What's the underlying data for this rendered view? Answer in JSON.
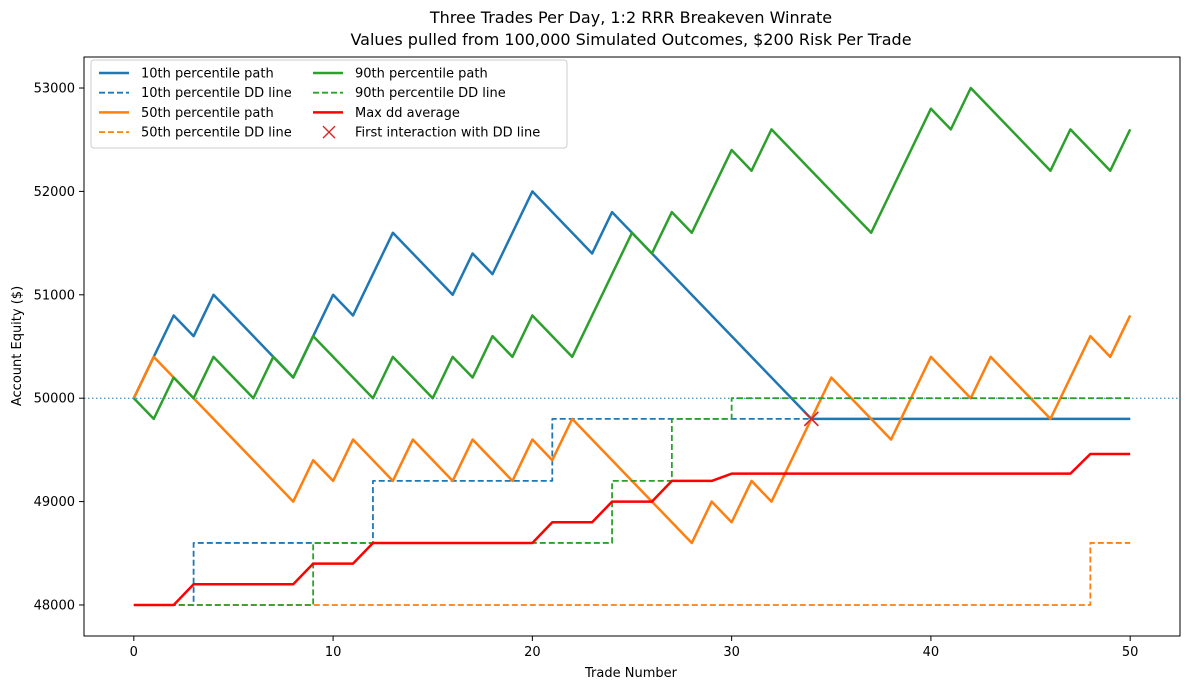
{
  "chart_data": {
    "type": "line",
    "title": "Three Trades Per Day, 1:2 RRR Breakeven Winrate",
    "subtitle": "Values pulled from 100,000 Simulated Outcomes, $200 Risk Per Trade",
    "xlabel": "Trade Number",
    "ylabel": "Account Equity ($)",
    "xlim": [
      -2.5,
      52.5
    ],
    "ylim": [
      47700,
      53300
    ],
    "xticks": [
      0,
      10,
      20,
      30,
      40,
      50
    ],
    "yticks": [
      48000,
      49000,
      50000,
      51000,
      52000,
      53000
    ],
    "grid": false,
    "legend_position": "upper left",
    "legend_columns": 2,
    "reference_line": {
      "y": 50000,
      "color": "#1f77b4",
      "style": "dotted"
    },
    "series": [
      {
        "name": "10th percentile path",
        "color": "#1f77b4",
        "style": "solid",
        "width": 2.5,
        "step": false,
        "x": [
          0,
          1,
          2,
          3,
          4,
          7,
          8,
          9,
          10,
          11,
          13,
          16,
          17,
          18,
          20,
          23,
          24,
          34,
          50
        ],
        "y": [
          50000,
          50400,
          50800,
          50600,
          51000,
          50400,
          50200,
          50600,
          51000,
          50800,
          51600,
          51000,
          51400,
          51200,
          52000,
          51400,
          51800,
          49800,
          49800
        ]
      },
      {
        "name": "10th percentile DD line",
        "color": "#1f77b4",
        "style": "dashed",
        "width": 1.8,
        "step": true,
        "x": [
          0,
          3,
          12,
          21,
          30,
          50
        ],
        "y": [
          48000,
          48600,
          49200,
          49800,
          49800,
          49800
        ]
      },
      {
        "name": "50th percentile path",
        "color": "#ff7f0e",
        "style": "solid",
        "width": 2.5,
        "step": false,
        "x": [
          0,
          1,
          3,
          8,
          9,
          10,
          11,
          13,
          14,
          16,
          17,
          19,
          20,
          21,
          22,
          26,
          28,
          29,
          30,
          31,
          32,
          35,
          38,
          40,
          42,
          43,
          46,
          48,
          49,
          50
        ],
        "y": [
          50000,
          50400,
          50000,
          49000,
          49400,
          49200,
          49600,
          49200,
          49600,
          49200,
          49600,
          49200,
          49600,
          49400,
          49800,
          49000,
          48600,
          49000,
          48800,
          49200,
          49000,
          50200,
          49600,
          50400,
          50000,
          50400,
          49800,
          50600,
          50400,
          50800
        ]
      },
      {
        "name": "50th percentile DD line",
        "color": "#ff7f0e",
        "style": "dashed",
        "width": 1.8,
        "step": true,
        "x": [
          0,
          48,
          50
        ],
        "y": [
          48000,
          48600,
          48600
        ]
      },
      {
        "name": "90th percentile path",
        "color": "#2ca02c",
        "style": "solid",
        "width": 2.5,
        "step": false,
        "x": [
          0,
          1,
          2,
          3,
          4,
          6,
          7,
          8,
          9,
          12,
          13,
          15,
          16,
          17,
          18,
          19,
          20,
          22,
          25,
          26,
          27,
          28,
          30,
          31,
          32,
          37,
          40,
          41,
          42,
          46,
          47,
          49,
          50
        ],
        "y": [
          50000,
          49800,
          50200,
          50000,
          50400,
          50000,
          50400,
          50200,
          50600,
          50000,
          50400,
          50000,
          50400,
          50200,
          50600,
          50400,
          50800,
          50400,
          51600,
          51400,
          51800,
          51600,
          52400,
          52200,
          52600,
          51600,
          52800,
          52600,
          53000,
          52200,
          52600,
          52200,
          52600
        ]
      },
      {
        "name": "90th percentile DD line",
        "color": "#2ca02c",
        "style": "dashed",
        "width": 1.8,
        "step": true,
        "x": [
          0,
          9,
          24,
          27,
          30,
          50
        ],
        "y": [
          48000,
          48600,
          49200,
          49800,
          50000,
          50000
        ]
      },
      {
        "name": "Max dd average",
        "color": "#ff0000",
        "style": "solid",
        "width": 2.5,
        "step": false,
        "x": [
          0,
          2,
          3,
          8,
          9,
          11,
          12,
          20,
          21,
          23,
          24,
          26,
          27,
          29,
          30,
          47,
          48,
          50
        ],
        "y": [
          48000,
          48000,
          48200,
          48200,
          48400,
          48400,
          48600,
          48600,
          48800,
          48800,
          49000,
          49000,
          49200,
          49200,
          49270,
          49270,
          49460,
          49460
        ]
      }
    ],
    "markers": [
      {
        "name": "First interaction with DD line",
        "symbol": "x",
        "color": "#d62728",
        "x": 34,
        "y": 49800
      }
    ],
    "legend": [
      {
        "label": "10th percentile path",
        "color": "#1f77b4",
        "style": "solid"
      },
      {
        "label": "10th percentile DD line",
        "color": "#1f77b4",
        "style": "dashed"
      },
      {
        "label": "50th percentile path",
        "color": "#ff7f0e",
        "style": "solid"
      },
      {
        "label": "50th percentile DD line",
        "color": "#ff7f0e",
        "style": "dashed"
      },
      {
        "label": "90th percentile path",
        "color": "#2ca02c",
        "style": "solid"
      },
      {
        "label": "90th percentile DD line",
        "color": "#2ca02c",
        "style": "dashed"
      },
      {
        "label": "Max dd average",
        "color": "#ff0000",
        "style": "solid"
      },
      {
        "label": "First interaction with DD line",
        "color": "#d62728",
        "style": "marker-x"
      }
    ]
  }
}
